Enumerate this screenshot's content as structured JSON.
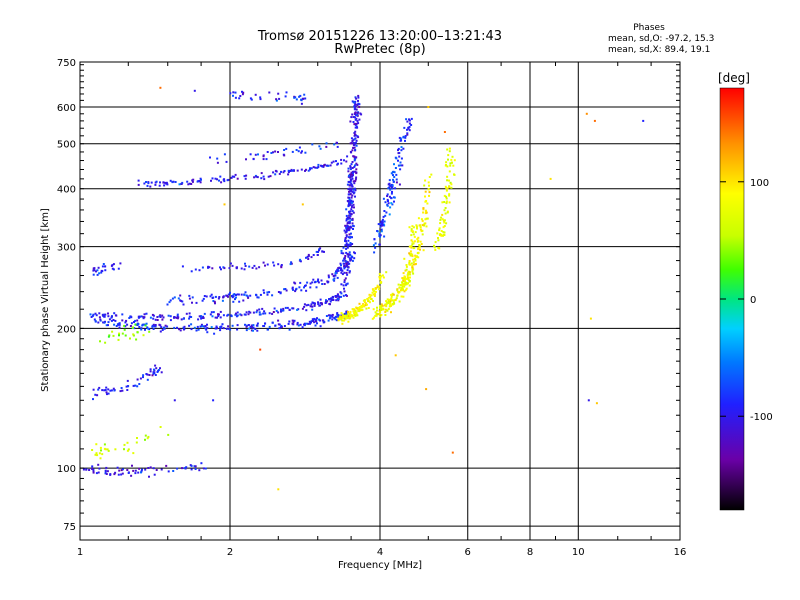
{
  "chart_data": {
    "type": "scatter",
    "title": "Tromsø 20151226 13:20:00–13:21:43",
    "subtitle": "RwPretec (8p)",
    "stats": {
      "heading": "Phases",
      "line_o": "mean, sd,O: -97.2, 15.3",
      "line_x": "mean, sd,X: 89.4, 19.1"
    },
    "xlabel": "Frequency [MHz]",
    "ylabel": "Stationary phase Virtual Height [km]",
    "x_scale": "log",
    "y_scale": "log",
    "xlim": [
      1,
      16
    ],
    "ylim": [
      70,
      750
    ],
    "x_ticks": [
      {
        "v": 1,
        "label": "1"
      },
      {
        "v": 2,
        "label": "2"
      },
      {
        "v": 4,
        "label": "4"
      },
      {
        "v": 6,
        "label": "6"
      },
      {
        "v": 8,
        "label": "8"
      },
      {
        "v": 10,
        "label": "10"
      },
      {
        "v": 16,
        "label": "16"
      }
    ],
    "y_ticks": [
      {
        "v": 75,
        "label": "75"
      },
      {
        "v": 100,
        "label": "100"
      },
      {
        "v": 200,
        "label": "200"
      },
      {
        "v": 300,
        "label": "300"
      },
      {
        "v": 400,
        "label": "400"
      },
      {
        "v": 500,
        "label": "500"
      },
      {
        "v": 600,
        "label": "600"
      },
      {
        "v": 750,
        "label": "750"
      }
    ],
    "grid": true,
    "colorbar": {
      "label": "[deg]",
      "range": [
        -180,
        180
      ],
      "ticks": [
        {
          "v": 100,
          "label": "100"
        },
        {
          "v": 0,
          "label": "0"
        },
        {
          "v": -100,
          "label": "-100"
        }
      ]
    },
    "traces": [
      {
        "f": [
          1.08,
          1.2,
          1.35,
          1.5,
          1.8,
          2.1,
          2.5,
          2.9,
          3.2,
          3.45
        ],
        "h": [
          210,
          205,
          202,
          200,
          200,
          201,
          203,
          206,
          210,
          215
        ],
        "phase": -100,
        "spread": 0.018,
        "n": 230
      },
      {
        "f": [
          1.05,
          1.2,
          1.4,
          1.7,
          2.0,
          2.4,
          2.8,
          3.1,
          3.35
        ],
        "h": [
          215,
          212,
          211,
          212,
          214,
          217,
          222,
          228,
          235
        ],
        "phase": -105,
        "spread": 0.015,
        "n": 200
      },
      {
        "f": [
          1.5,
          1.8,
          2.1,
          2.5,
          2.9,
          3.2,
          3.4,
          3.55
        ],
        "h": [
          230,
          231,
          234,
          240,
          248,
          258,
          272,
          290
        ],
        "phase": -100,
        "spread": 0.02,
        "n": 170
      },
      {
        "f": [
          3.3,
          3.45,
          3.6,
          3.75,
          3.9,
          4.1
        ],
        "h": [
          210,
          212,
          218,
          226,
          240,
          265
        ],
        "phase": 95,
        "spread": 0.02,
        "n": 150
      },
      {
        "f": [
          3.9,
          4.1,
          4.3,
          4.5,
          4.6,
          4.7
        ],
        "h": [
          215,
          222,
          234,
          255,
          285,
          330
        ],
        "phase": 90,
        "spread": 0.03,
        "n": 160
      },
      {
        "f": [
          4.4,
          4.6,
          4.8,
          4.95,
          5.0
        ],
        "h": [
          240,
          260,
          300,
          360,
          420
        ],
        "phase": 95,
        "spread": 0.025,
        "n": 110
      },
      {
        "f": [
          5.2,
          5.35,
          5.45,
          5.5,
          5.55
        ],
        "h": [
          300,
          330,
          380,
          430,
          480
        ],
        "phase": 80,
        "spread": 0.03,
        "n": 80
      },
      {
        "f": [
          3.45,
          3.5,
          3.55,
          3.6
        ],
        "h": [
          300,
          400,
          500,
          630
        ],
        "phase": -110,
        "spread": 0.03,
        "n": 220
      },
      {
        "f": [
          3.35,
          3.45,
          3.55
        ],
        "h": [
          230,
          300,
          450
        ],
        "phase": -105,
        "spread": 0.03,
        "n": 110
      },
      {
        "f": [
          1.3,
          1.6,
          2.0,
          2.5,
          3.0,
          3.4
        ],
        "h": [
          410,
          412,
          420,
          432,
          445,
          460
        ],
        "phase": -105,
        "spread": 0.015,
        "n": 120
      },
      {
        "f": [
          1.8,
          2.2,
          2.6,
          3.0,
          3.3
        ],
        "h": [
          460,
          470,
          480,
          490,
          500
        ],
        "phase": -100,
        "spread": 0.02,
        "n": 40
      },
      {
        "f": [
          3.9,
          4.15,
          4.3,
          4.45
        ],
        "h": [
          300,
          360,
          430,
          520
        ],
        "phase": -90,
        "spread": 0.03,
        "n": 90
      },
      {
        "f": [
          4.2,
          4.35,
          4.5,
          4.6
        ],
        "h": [
          400,
          460,
          520,
          580
        ],
        "phase": -100,
        "spread": 0.025,
        "n": 40
      },
      {
        "f": [
          1.6,
          1.9,
          2.2,
          2.6,
          2.9,
          3.1
        ],
        "h": [
          270,
          270,
          272,
          276,
          285,
          295
        ],
        "phase": -105,
        "spread": 0.015,
        "n": 60
      },
      {
        "f": [
          1.05,
          1.2,
          1.35,
          1.45
        ],
        "h": [
          145,
          148,
          156,
          165
        ],
        "phase": -105,
        "spread": 0.025,
        "n": 55
      },
      {
        "f": [
          1.0,
          1.1,
          1.25,
          1.4,
          1.6,
          1.8
        ],
        "h": [
          100,
          99,
          98,
          99,
          100,
          101
        ],
        "phase": -110,
        "spread": 0.02,
        "n": 70
      },
      {
        "f": [
          1.05,
          1.12,
          1.2
        ],
        "h": [
          265,
          270,
          272
        ],
        "phase": -105,
        "spread": 0.02,
        "n": 25
      },
      {
        "f": [
          1.1,
          1.25,
          1.4
        ],
        "h": [
          192,
          195,
          198
        ],
        "phase": 40,
        "spread": 0.03,
        "n": 25
      },
      {
        "f": [
          2.0,
          2.2,
          2.6,
          2.9
        ],
        "h": [
          640,
          635,
          630,
          625
        ],
        "phase": -100,
        "spread": 0.02,
        "n": 35
      },
      {
        "f": [
          1.05,
          1.15,
          1.3,
          1.5
        ],
        "h": [
          110,
          108,
          115,
          120
        ],
        "phase": 70,
        "spread": 0.04,
        "n": 30
      }
    ],
    "points": [
      {
        "f": 10.4,
        "h": 580,
        "phase": 140
      },
      {
        "f": 10.8,
        "h": 560,
        "phase": 150
      },
      {
        "f": 13.5,
        "h": 560,
        "phase": -100
      },
      {
        "f": 8.8,
        "h": 420,
        "phase": 110
      },
      {
        "f": 10.6,
        "h": 210,
        "phase": 110
      },
      {
        "f": 10.5,
        "h": 140,
        "phase": -110
      },
      {
        "f": 10.9,
        "h": 138,
        "phase": 120
      },
      {
        "f": 5.6,
        "h": 108,
        "phase": 150
      },
      {
        "f": 2.5,
        "h": 90,
        "phase": 110
      },
      {
        "f": 4.3,
        "h": 175,
        "phase": 120
      },
      {
        "f": 2.3,
        "h": 180,
        "phase": 160
      },
      {
        "f": 4.95,
        "h": 148,
        "phase": 130
      },
      {
        "f": 1.45,
        "h": 660,
        "phase": 150
      },
      {
        "f": 1.7,
        "h": 650,
        "phase": -110
      },
      {
        "f": 1.95,
        "h": 370,
        "phase": 120
      },
      {
        "f": 2.8,
        "h": 370,
        "phase": 120
      },
      {
        "f": 5.0,
        "h": 600,
        "phase": 120
      },
      {
        "f": 5.4,
        "h": 530,
        "phase": 150
      },
      {
        "f": 1.55,
        "h": 140,
        "phase": -110
      },
      {
        "f": 1.85,
        "h": 140,
        "phase": -100
      }
    ]
  }
}
